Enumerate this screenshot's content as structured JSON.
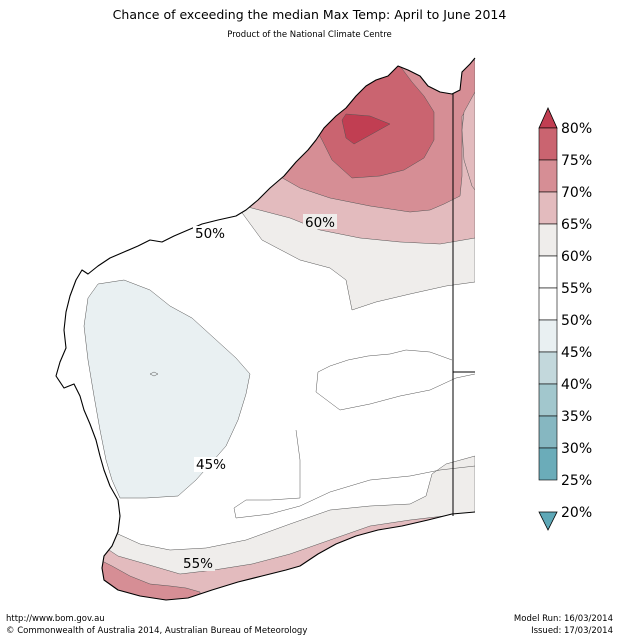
{
  "title": "Chance of exceeding the median Max Temp: April to June 2014",
  "subtitle": "Product of the National Climate Centre",
  "map": {
    "region": "Western Australia",
    "contour_labels": [
      "50%",
      "60%",
      "45%",
      "55%"
    ]
  },
  "legend": {
    "labels": [
      "80%",
      "75%",
      "70%",
      "65%",
      "60%",
      "55%",
      "50%",
      "45%",
      "40%",
      "35%",
      "30%",
      "25%",
      "20%"
    ],
    "colors": [
      "#c13e52",
      "#ca6470",
      "#d68e95",
      "#e3bbbe",
      "#efedeb",
      "#ffffff",
      "#ffffff",
      "#e9f0f2",
      "#c3d8dc",
      "#a2c7cd",
      "#86b7c1",
      "#6bacb9",
      "#5ea8b7"
    ]
  },
  "footer": {
    "url": "http://www.bom.gov.au",
    "copyright": "©  Commonwealth of Australia 2014, Australian Bureau of Meteorology",
    "model_run": "Model Run: 16/03/2014",
    "issued": "Issued: 17/03/2014"
  }
}
